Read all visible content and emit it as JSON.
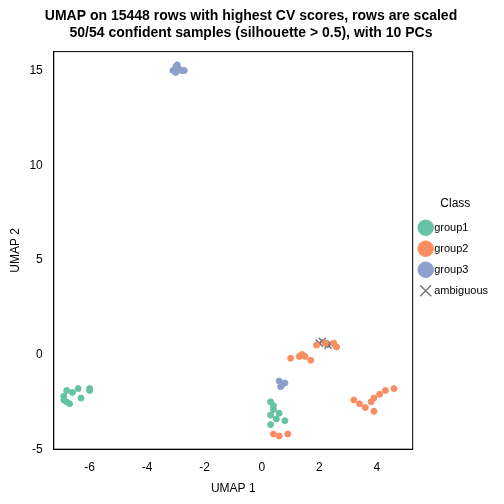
{
  "chart_data": {
    "type": "scatter",
    "title": [
      "UMAP on 15448 rows with highest CV scores, rows are scaled",
      "50/54 confident samples (silhouette > 0.5), with 10 PCs"
    ],
    "x_label": "UMAP 1",
    "y_label": "UMAP 2",
    "legend_title": "Class",
    "legend": "right",
    "grid": false,
    "xlim": [
      -7.25,
      5.25
    ],
    "ylim": [
      -5,
      16
    ],
    "xticks": [
      -6,
      -4,
      -2,
      0,
      2,
      4
    ],
    "yticks": [
      -5,
      0,
      5,
      10,
      15
    ],
    "series": [
      {
        "name": "group1",
        "color": "#66C2A5",
        "marker": "circle",
        "x": [
          -6.9,
          -6.8,
          -6.7,
          -6.6,
          -6.4,
          -6.0,
          -6.0,
          -6.3,
          -6.8,
          -6.9,
          0.3,
          0.4,
          0.3,
          0.5,
          0.8,
          0.6,
          0.4,
          0.3
        ],
        "y": [
          -2.2,
          -2.5,
          -2.6,
          -2.0,
          -1.8,
          -1.9,
          -1.8,
          -2.3,
          -1.9,
          -2.4,
          -2.5,
          -2.9,
          -3.2,
          -3.4,
          -3.5,
          -3.1,
          -2.7,
          -3.7
        ]
      },
      {
        "name": "group2",
        "color": "#FC8D62",
        "marker": "circle",
        "x": [
          0.4,
          0.6,
          0.9,
          1.0,
          1.4,
          1.5,
          1.7,
          1.3,
          1.9,
          2.2,
          2.5,
          2.6,
          3.2,
          3.4,
          3.6,
          3.9,
          3.9,
          4.1,
          4.3,
          4.6,
          3.8
        ],
        "y": [
          -4.2,
          -4.3,
          -4.2,
          -0.2,
          0.0,
          -0.1,
          -0.3,
          -0.1,
          0.5,
          0.6,
          0.6,
          0.4,
          -2.4,
          -2.6,
          -2.8,
          -2.3,
          -3.0,
          -2.1,
          -1.9,
          -1.8,
          -2.5
        ]
      },
      {
        "name": "group3",
        "color": "#8DA0CB",
        "marker": "circle",
        "x": [
          -3.0,
          -2.9,
          -2.8,
          -3.1,
          -2.95,
          -2.7,
          -3.0,
          0.6,
          0.7,
          0.8,
          0.65
        ],
        "y": [
          14.9,
          15.1,
          15.0,
          15.0,
          15.3,
          15.0,
          15.2,
          -1.4,
          -1.6,
          -1.5,
          -1.7
        ]
      },
      {
        "name": "ambiguous",
        "color": "#777777",
        "marker": "crossRot",
        "x": [
          2.0,
          2.1,
          2.3,
          2.4
        ],
        "y": [
          0.6,
          0.7,
          0.5,
          0.55
        ]
      }
    ]
  }
}
